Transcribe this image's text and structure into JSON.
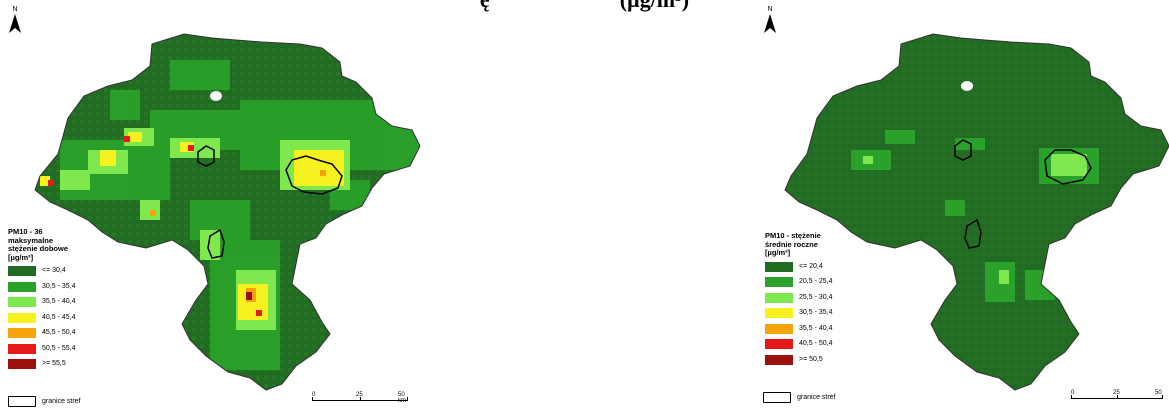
{
  "title": {
    "left_fragment": "ę",
    "right_fragment": "(µg/m³)"
  },
  "north_label": "N",
  "left_map": {
    "legend_title_lines": [
      "PM10 - 36",
      "maksymalne",
      "stężenie dobowe"
    ],
    "legend_unit": "[µg/m³]",
    "classes": [
      {
        "label": "<= 30,4",
        "color": "#226b22"
      },
      {
        "label": "30,5 - 35,4",
        "color": "#2aa12a"
      },
      {
        "label": "35,5 - 40,4",
        "color": "#7fe84f"
      },
      {
        "label": "40,5 - 45,4",
        "color": "#f7f21f"
      },
      {
        "label": "45,5 - 50,4",
        "color": "#f5a30c"
      },
      {
        "label": "50,5 - 55,4",
        "color": "#e61a1a"
      },
      {
        "label": ">= 55,5",
        "color": "#9b0f0f"
      }
    ],
    "zone_label": "granice stref",
    "scale_labels": [
      "0",
      "25",
      "50 km"
    ]
  },
  "right_map": {
    "legend_title_lines": [
      "PM10 - stężenie",
      "średnie roczne"
    ],
    "legend_unit": "[µg/m³]",
    "classes": [
      {
        "label": "<= 20,4",
        "color": "#226b22"
      },
      {
        "label": "20,5 - 25,4",
        "color": "#2aa12a"
      },
      {
        "label": "25,5 - 30,4",
        "color": "#7fe84f"
      },
      {
        "label": "30,5 - 35,4",
        "color": "#f7f21f"
      },
      {
        "label": "35,5 - 40,4",
        "color": "#f5a30c"
      },
      {
        "label": "40,5 - 50,4",
        "color": "#e61a1a"
      },
      {
        "label": ">= 50,5",
        "color": "#9b0f0f"
      }
    ],
    "zone_label": "granice stref",
    "scale_labels": [
      "0",
      "25",
      "50"
    ]
  }
}
